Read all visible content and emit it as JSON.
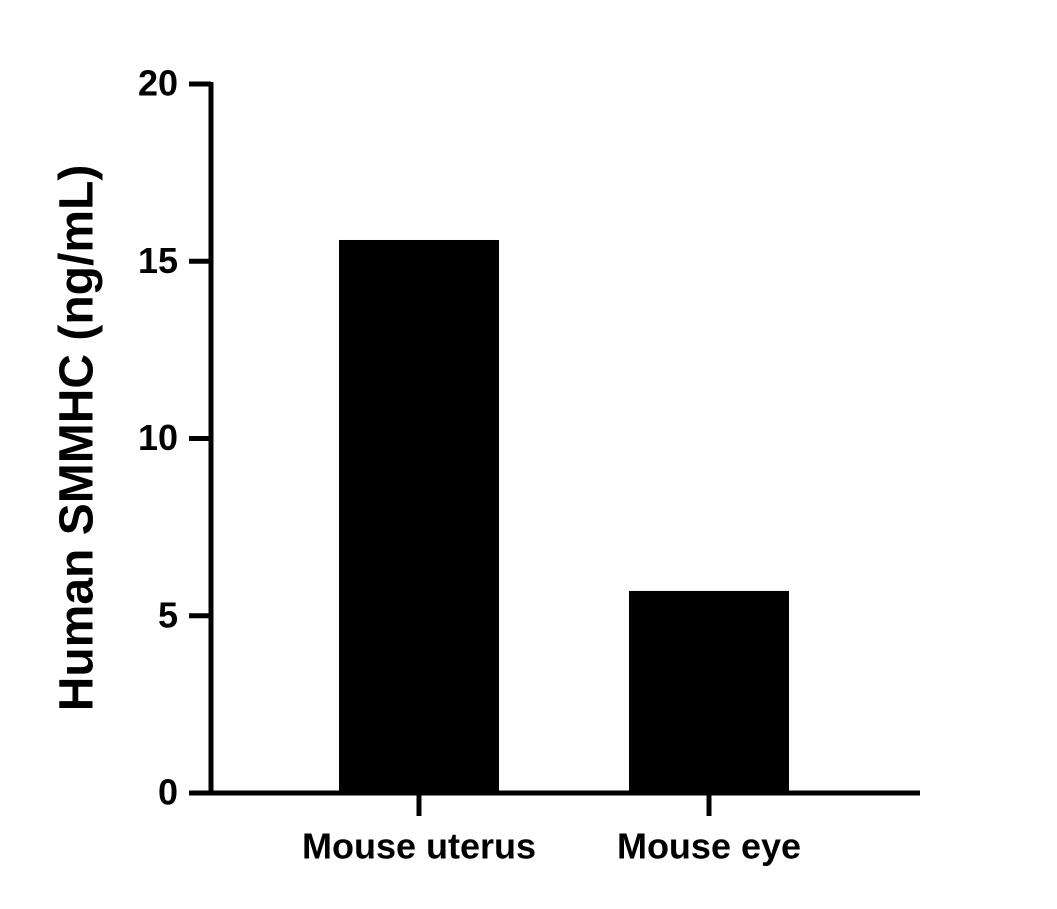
{
  "chart_data": {
    "type": "bar",
    "y_label": "Human SMMHC (ng/mL)",
    "categories": [
      "Mouse uterus",
      "Mouse eye"
    ],
    "values": [
      15.6,
      5.7
    ],
    "color": "#000000",
    "ylim": [
      0,
      20
    ],
    "yticks": [
      0,
      5,
      10,
      15,
      20
    ],
    "grid": false
  }
}
